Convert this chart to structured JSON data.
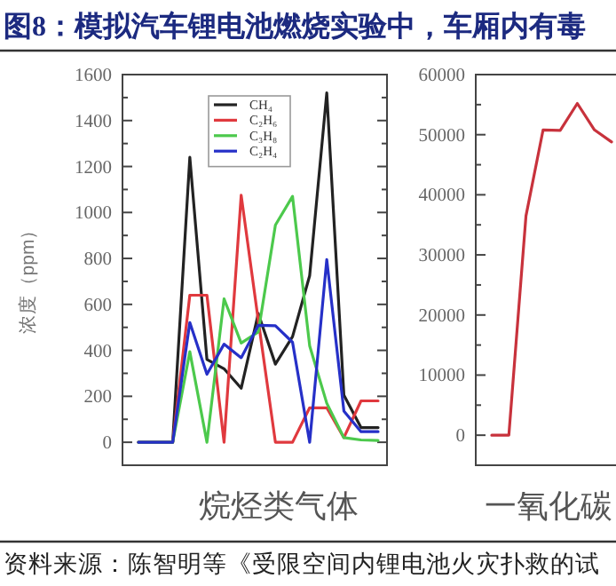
{
  "chart_data": [
    {
      "type": "line",
      "title": "图8：模拟汽车锂电池燃烧实验中，车厢内有毒",
      "xlabel": "烷烃类气体",
      "ylabel": "浓度（ppm）",
      "categories": [
        null,
        null,
        null,
        null,
        null,
        null,
        null,
        null,
        null,
        null,
        null,
        null,
        null,
        null,
        null
      ],
      "series": [
        {
          "name": "CH₄",
          "color": "#222222",
          "values": [
            0,
            0,
            0,
            1240,
            360,
            320,
            235,
            560,
            340,
            460,
            725,
            1520,
            205,
            64,
            64
          ]
        },
        {
          "name": "C₂H₆",
          "color": "#e0393e",
          "values": [
            0,
            0,
            0,
            640,
            640,
            0,
            1075,
            530,
            0,
            0,
            150,
            150,
            20,
            180,
            180
          ]
        },
        {
          "name": "C₃H₈",
          "color": "#4cc94c",
          "values": [
            0,
            0,
            0,
            394,
            0,
            624,
            432,
            480,
            945,
            1070,
            420,
            170,
            20,
            10,
            8
          ]
        },
        {
          "name": "C₂H₄",
          "color": "#2630c8",
          "values": [
            0,
            0,
            0,
            521,
            296,
            427,
            368,
            509,
            507,
            435,
            0,
            795,
            136,
            46,
            46
          ]
        }
      ],
      "ylim": [
        -100,
        1600
      ],
      "yticks": [
        0,
        200,
        400,
        600,
        800,
        1000,
        1200,
        1400,
        1600,
        {
          "value": 100,
          "label": null
        },
        {
          "value": 300,
          "label": null
        },
        {
          "value": 500,
          "label": null
        },
        {
          "value": 700,
          "label": null
        },
        {
          "value": 900,
          "label": null
        },
        {
          "value": 1100,
          "label": null
        },
        {
          "value": 1300,
          "label": null
        },
        {
          "value": 1500,
          "label": null
        }
      ],
      "legend": "top",
      "annotations": [
        "资料来源：陈智明等《受限空间内锂电池火灾扑救的试"
      ]
    },
    {
      "type": "line",
      "xlabel": "一氧化碳",
      "categories": [
        null,
        null,
        null,
        null,
        null,
        null,
        null,
        null,
        null,
        null,
        null,
        null,
        null,
        null,
        null
      ],
      "series": [
        {
          "color": "#c8323c",
          "values": [
            0,
            0,
            36500,
            50800,
            50700,
            55200,
            50800,
            48800,
            null,
            null,
            null,
            null,
            null,
            null,
            null
          ]
        }
      ],
      "ylim": [
        -5000,
        60000
      ],
      "yticks": [
        0,
        10000,
        20000,
        30000,
        40000,
        50000,
        60000,
        {
          "value": 5000,
          "label": null
        },
        {
          "value": 15000,
          "label": null
        },
        {
          "value": 25000,
          "label": null
        },
        {
          "value": 35000,
          "label": null
        },
        {
          "value": 45000,
          "label": null
        },
        {
          "value": 55000,
          "label": null
        }
      ]
    }
  ]
}
